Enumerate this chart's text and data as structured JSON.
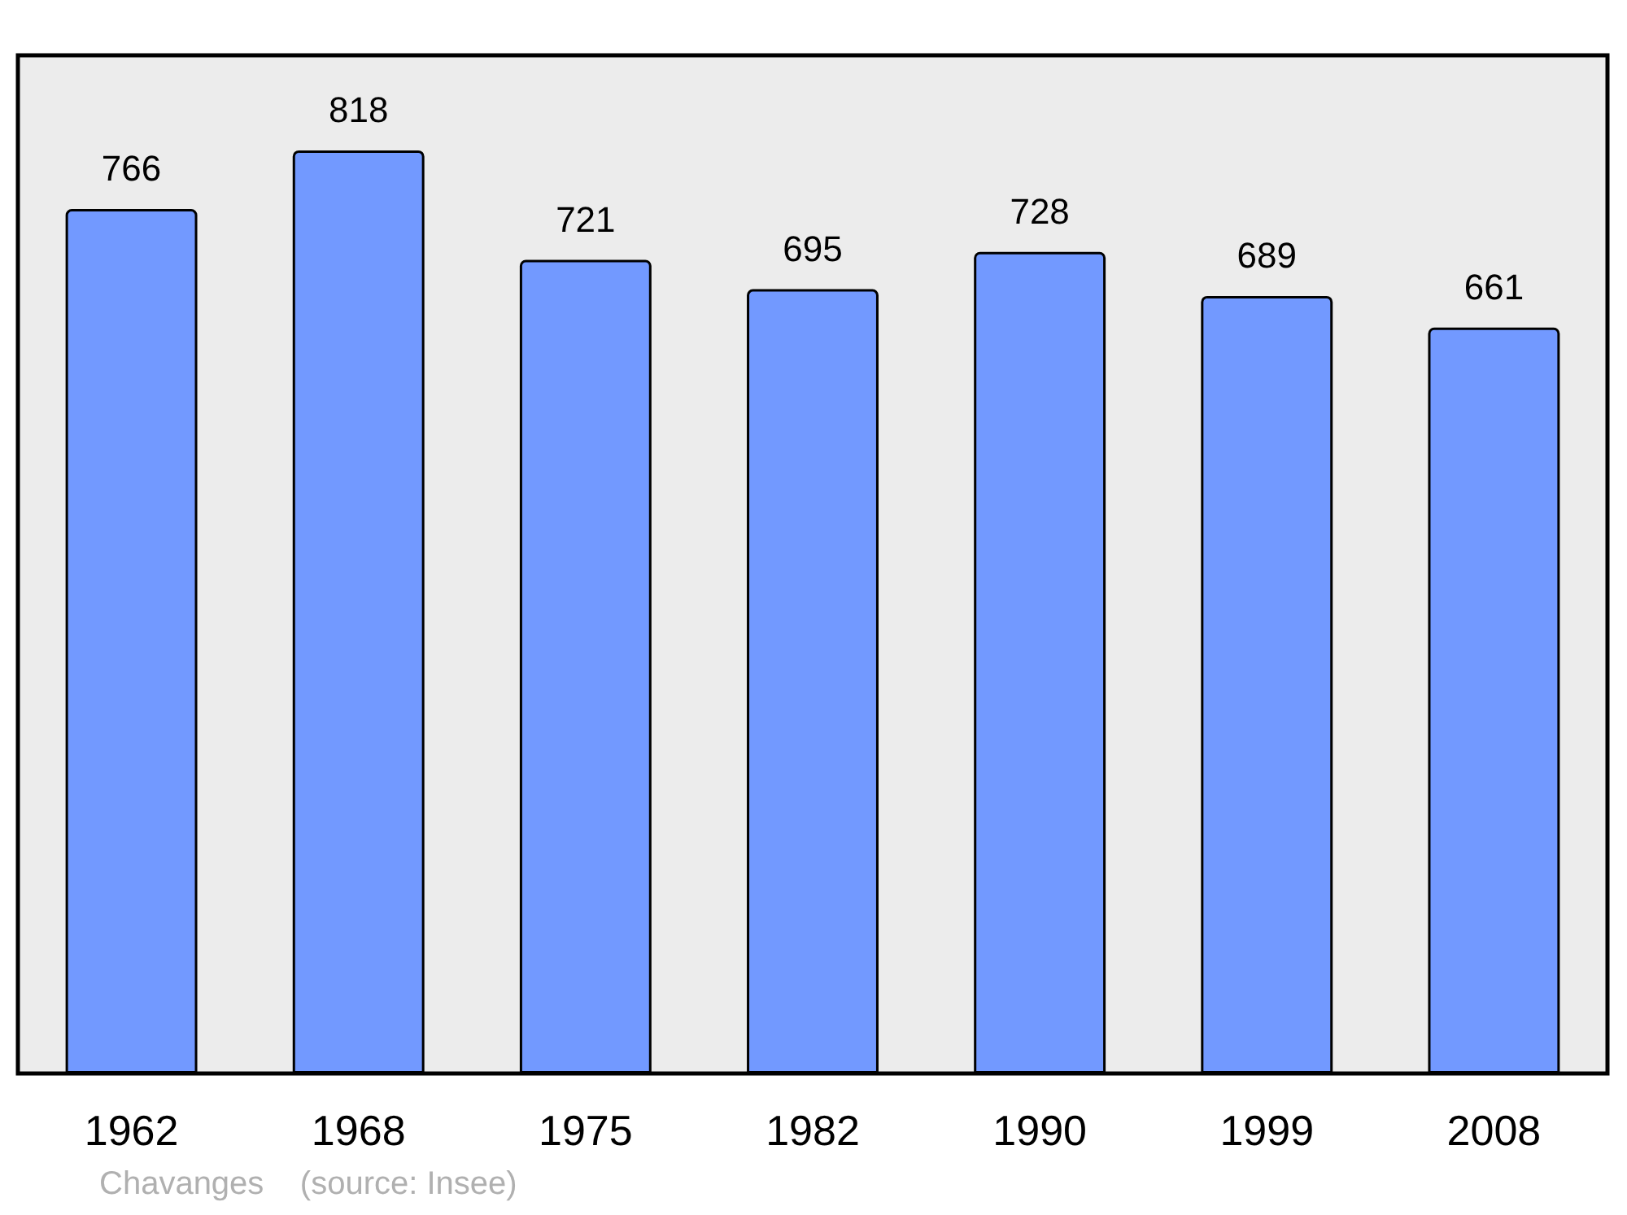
{
  "chart_data": {
    "type": "bar",
    "categories": [
      "1962",
      "1968",
      "1975",
      "1982",
      "1990",
      "1999",
      "2008"
    ],
    "values": [
      766,
      818,
      721,
      695,
      728,
      689,
      661
    ],
    "color": "#7299ff",
    "data_labels": true,
    "tick_labels": "x",
    "annotations": [
      "Chavanges    (source: Insee)"
    ]
  }
}
